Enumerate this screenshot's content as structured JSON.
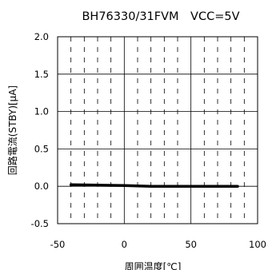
{
  "chart_data": {
    "type": "line",
    "title": "BH76330/31FVM　VCC=5V",
    "xlabel": "周囲温度[℃]",
    "ylabel": "回路電流(STBY)[μA]",
    "xlim": [
      -50,
      100
    ],
    "ylim": [
      -0.5,
      2.0
    ],
    "x_ticks": [
      -50,
      0,
      50,
      100
    ],
    "x_tick_labels": [
      "-50",
      "0",
      "50",
      "100"
    ],
    "y_ticks": [
      -0.5,
      0.0,
      0.5,
      1.0,
      1.5,
      2.0
    ],
    "y_tick_labels": [
      "-0.5",
      "0.0",
      "0.5",
      "1.0",
      "1.5",
      "2.0"
    ],
    "grid": true,
    "series": [
      {
        "x": [
          -40,
          -20,
          0,
          20,
          40,
          60,
          85
        ],
        "values": [
          0.02,
          0.015,
          0.01,
          0.0,
          0.0,
          0.0,
          0.0
        ],
        "color": "#000000"
      }
    ]
  }
}
